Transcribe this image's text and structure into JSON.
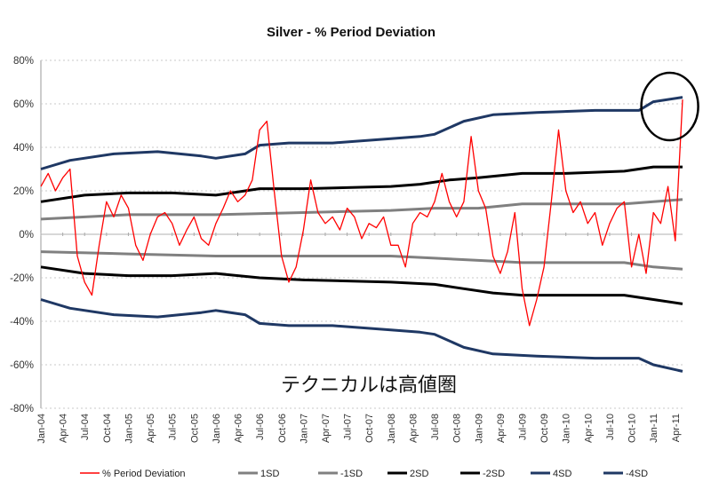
{
  "chart_data": {
    "type": "line",
    "title": "Silver - % Period Deviation",
    "xlabel": "",
    "ylabel": "",
    "ylim": [
      -80,
      80
    ],
    "yticks": [
      "80%",
      "60%",
      "40%",
      "20%",
      "0%",
      "-20%",
      "-40%",
      "-60%",
      "-80%"
    ],
    "ytick_values": [
      80,
      60,
      40,
      20,
      0,
      -20,
      -40,
      -60,
      -80
    ],
    "grid": "horizontal dotted",
    "x_unit": "months since Jan-04",
    "xlim": [
      0,
      88
    ],
    "xticks": [
      "Jan-04",
      "Apr-04",
      "Jul-04",
      "Oct-04",
      "Jan-05",
      "Apr-05",
      "Jul-05",
      "Oct-05",
      "Jan-06",
      "Apr-06",
      "Jul-06",
      "Oct-06",
      "Jan-07",
      "Apr-07",
      "Jul-07",
      "Oct-07",
      "Jan-08",
      "Apr-08",
      "Jul-08",
      "Oct-08",
      "Jan-09",
      "Apr-09",
      "Jul-09",
      "Oct-09",
      "Jan-10",
      "Apr-10",
      "Jul-10",
      "Oct-10",
      "Jan-11",
      "Apr-11"
    ],
    "legend_position": "bottom",
    "annotation": "テクニカルは高値圏",
    "series": [
      {
        "name": "% Period Deviation",
        "color": "#ff0000",
        "x": [
          0,
          1,
          2,
          3,
          4,
          5,
          6,
          7,
          8,
          9,
          10,
          11,
          12,
          13,
          14,
          15,
          16,
          17,
          18,
          19,
          20,
          21,
          22,
          23,
          24,
          25,
          26,
          27,
          28,
          29,
          30,
          31,
          32,
          33,
          34,
          35,
          36,
          37,
          38,
          39,
          40,
          41,
          42,
          43,
          44,
          45,
          46,
          47,
          48,
          49,
          50,
          51,
          52,
          53,
          54,
          55,
          56,
          57,
          58,
          59,
          60,
          61,
          62,
          63,
          64,
          65,
          66,
          67,
          68,
          69,
          70,
          71,
          72,
          73,
          74,
          75,
          76,
          77,
          78,
          79,
          80,
          81,
          82,
          83,
          84,
          85,
          86,
          87,
          88
        ],
        "values": [
          22,
          28,
          20,
          26,
          30,
          -10,
          -22,
          -28,
          -5,
          15,
          8,
          18,
          12,
          -5,
          -12,
          0,
          8,
          10,
          5,
          -5,
          2,
          8,
          -2,
          -5,
          5,
          12,
          20,
          15,
          18,
          25,
          48,
          52,
          20,
          -10,
          -22,
          -15,
          2,
          25,
          10,
          5,
          8,
          2,
          12,
          8,
          -2,
          5,
          3,
          8,
          -5,
          -5,
          -15,
          5,
          10,
          8,
          15,
          28,
          15,
          8,
          15,
          45,
          20,
          12,
          -10,
          -18,
          -8,
          10,
          -25,
          -42,
          -30,
          -15,
          15,
          48,
          20,
          10,
          15,
          5,
          10,
          -5,
          5,
          12,
          15,
          -15,
          0,
          -18,
          10,
          5,
          22,
          -3,
          62
        ]
      },
      {
        "name": "1SD",
        "color": "#808080",
        "x": [
          0,
          12,
          24,
          36,
          48,
          54,
          60,
          66,
          72,
          80,
          84,
          88
        ],
        "values": [
          7,
          9,
          9,
          10,
          11,
          12,
          12,
          14,
          14,
          14,
          15,
          16
        ]
      },
      {
        "name": "-1SD",
        "color": "#808080",
        "x": [
          0,
          12,
          24,
          36,
          48,
          54,
          60,
          66,
          72,
          80,
          84,
          88
        ],
        "values": [
          -8,
          -9,
          -10,
          -10,
          -10,
          -11,
          -12,
          -13,
          -13,
          -13,
          -15,
          -16
        ]
      },
      {
        "name": "2SD",
        "color": "#000000",
        "x": [
          0,
          6,
          12,
          18,
          24,
          30,
          36,
          48,
          52,
          56,
          60,
          66,
          72,
          80,
          84,
          88
        ],
        "values": [
          15,
          18,
          19,
          19,
          18,
          21,
          21,
          22,
          23,
          25,
          26,
          28,
          28,
          29,
          31,
          31
        ]
      },
      {
        "name": "-2SD",
        "color": "#000000",
        "x": [
          0,
          6,
          12,
          18,
          24,
          30,
          36,
          48,
          54,
          58,
          62,
          66,
          72,
          80,
          84,
          88
        ],
        "values": [
          -15,
          -18,
          -19,
          -19,
          -18,
          -20,
          -21,
          -22,
          -23,
          -25,
          -27,
          -28,
          -28,
          -28,
          -30,
          -32
        ]
      },
      {
        "name": "4SD",
        "color": "#1f3864",
        "x": [
          0,
          4,
          10,
          16,
          22,
          24,
          28,
          30,
          34,
          40,
          48,
          52,
          54,
          58,
          62,
          68,
          76,
          82,
          84,
          88
        ],
        "values": [
          30,
          34,
          37,
          38,
          36,
          35,
          37,
          41,
          42,
          42,
          44,
          45,
          46,
          52,
          55,
          56,
          57,
          57,
          61,
          63
        ]
      },
      {
        "name": "-4SD",
        "color": "#1f3864",
        "x": [
          0,
          4,
          10,
          16,
          22,
          24,
          28,
          30,
          34,
          40,
          48,
          52,
          54,
          58,
          62,
          68,
          76,
          82,
          84,
          88
        ],
        "values": [
          -30,
          -34,
          -37,
          -38,
          -36,
          -35,
          -37,
          -41,
          -42,
          -42,
          -44,
          -45,
          -46,
          -52,
          -55,
          -56,
          -57,
          -57,
          -60,
          -63
        ]
      }
    ],
    "highlight": {
      "shape": "circle",
      "x": 86,
      "y": 60
    }
  }
}
